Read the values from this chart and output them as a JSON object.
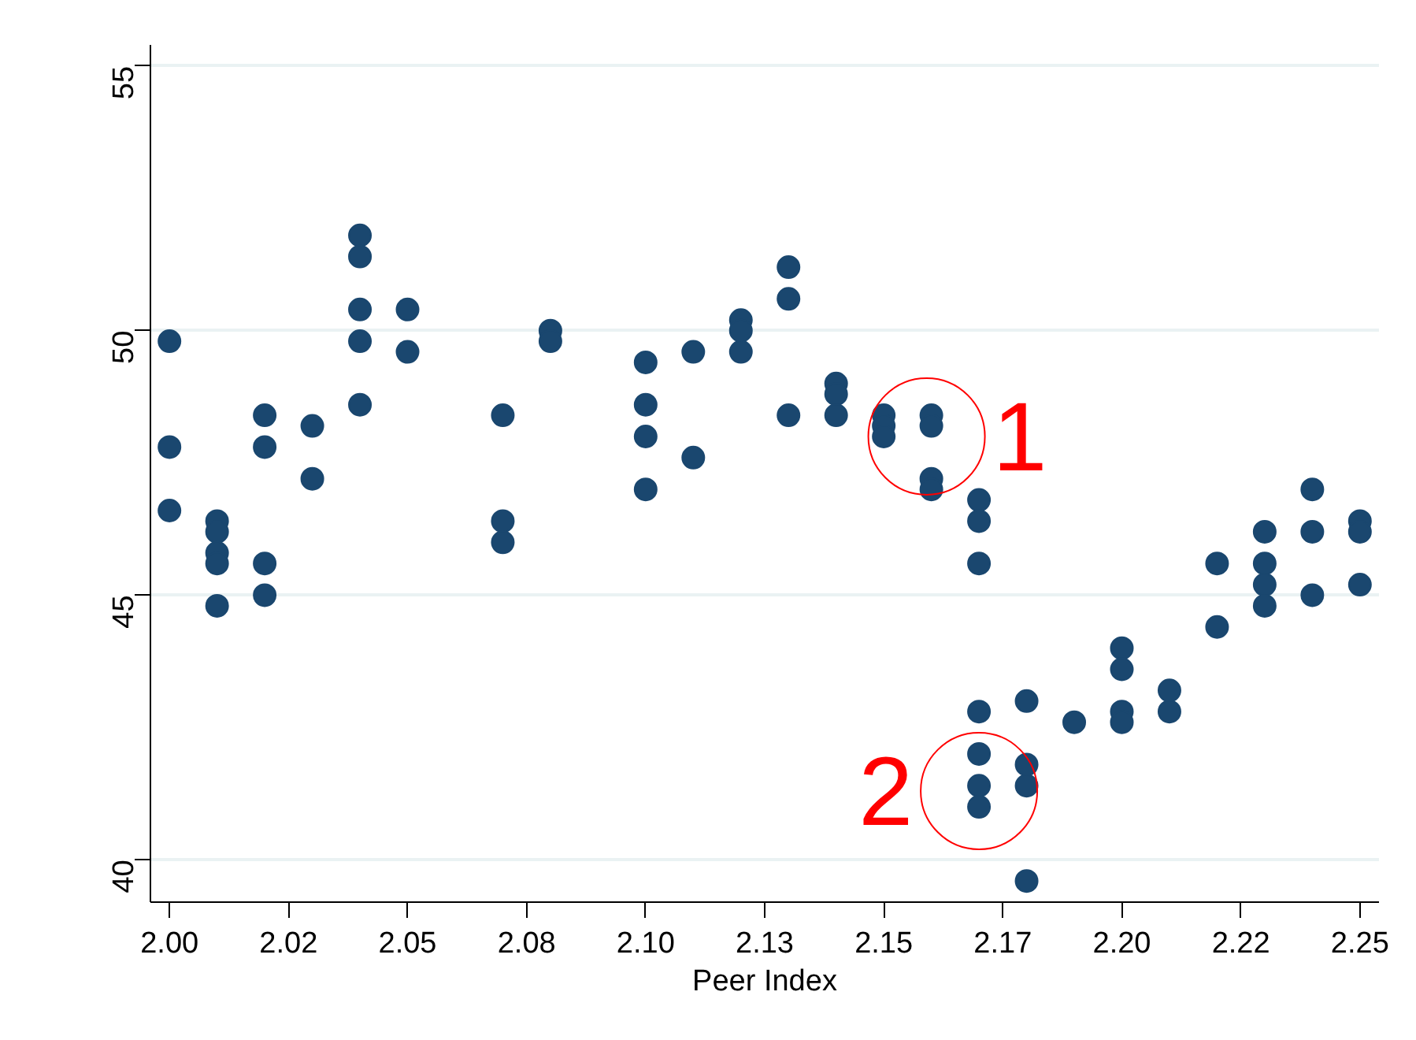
{
  "chart_data": {
    "type": "scatter",
    "xlabel": "Peer Index",
    "marker": "circle",
    "grid": "y",
    "xlim": [
      1.996,
      2.254
    ],
    "ylim": [
      39.2,
      55.4
    ],
    "xticks": [
      {
        "value": 2.0,
        "label": "2.00"
      },
      {
        "value": 2.025,
        "label": "2.02"
      },
      {
        "value": 2.05,
        "label": "2.05"
      },
      {
        "value": 2.075,
        "label": "2.08"
      },
      {
        "value": 2.1,
        "label": "2.10"
      },
      {
        "value": 2.125,
        "label": "2.13"
      },
      {
        "value": 2.15,
        "label": "2.15"
      },
      {
        "value": 2.175,
        "label": "2.17"
      },
      {
        "value": 2.2,
        "label": "2.20"
      },
      {
        "value": 2.225,
        "label": "2.22"
      },
      {
        "value": 2.25,
        "label": "2.25"
      }
    ],
    "yticks": [
      40,
      45,
      50,
      55
    ],
    "annotations": [
      {
        "text": "1",
        "x": 2.159,
        "y": 48.0
      },
      {
        "text": "2",
        "x": 2.17,
        "y": 41.3
      }
    ],
    "series": [
      {
        "color": "#1a476f",
        "x": [
          2.0,
          2.0,
          2.0,
          2.01,
          2.01,
          2.01,
          2.01,
          2.01,
          2.02,
          2.02,
          2.02,
          2.02,
          2.03,
          2.03,
          2.04,
          2.04,
          2.04,
          2.04,
          2.04,
          2.05,
          2.05,
          2.07,
          2.07,
          2.07,
          2.08,
          2.08,
          2.1,
          2.1,
          2.1,
          2.1,
          2.11,
          2.11,
          2.12,
          2.12,
          2.12,
          2.13,
          2.13,
          2.13,
          2.14,
          2.14,
          2.14,
          2.15,
          2.15,
          2.15,
          2.16,
          2.16,
          2.16,
          2.16,
          2.17,
          2.17,
          2.17,
          2.17,
          2.17,
          2.17,
          2.17,
          2.18,
          2.18,
          2.18,
          2.18,
          2.19,
          2.2,
          2.2,
          2.2,
          2.2,
          2.21,
          2.21,
          2.22,
          2.22,
          2.23,
          2.23,
          2.23,
          2.23,
          2.24,
          2.24,
          2.24,
          2.25,
          2.25,
          2.25
        ],
        "values": [
          49.8,
          47.8,
          46.6,
          46.4,
          46.2,
          45.8,
          45.6,
          44.8,
          48.4,
          47.8,
          45.6,
          45.0,
          48.2,
          47.2,
          51.8,
          51.4,
          50.4,
          49.8,
          48.6,
          50.4,
          49.6,
          48.4,
          46.4,
          46.0,
          50.0,
          49.8,
          49.4,
          48.6,
          48.0,
          47.0,
          49.6,
          47.6,
          50.2,
          50.0,
          49.6,
          51.2,
          50.6,
          48.4,
          49.0,
          48.8,
          48.4,
          48.4,
          48.2,
          48.0,
          48.4,
          48.2,
          47.2,
          47.0,
          46.8,
          46.4,
          45.6,
          42.8,
          42.0,
          41.4,
          41.0,
          43.0,
          41.8,
          41.4,
          39.6,
          42.6,
          44.0,
          43.6,
          42.8,
          42.6,
          43.2,
          42.8,
          45.6,
          44.4,
          46.2,
          45.6,
          45.2,
          44.8,
          47.0,
          46.2,
          45.0,
          46.4,
          46.2,
          45.2
        ]
      }
    ]
  }
}
